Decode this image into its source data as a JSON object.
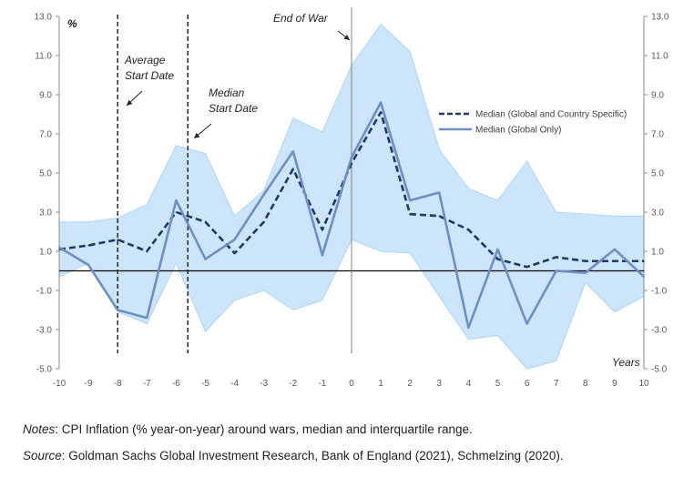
{
  "chart_data": {
    "type": "line",
    "title": "",
    "xlabel": "Years",
    "ylabel": "%",
    "x": [
      -10,
      -9,
      -8,
      -7,
      -6,
      -5,
      -4,
      -3,
      -2,
      -1,
      0,
      1,
      2,
      3,
      4,
      5,
      6,
      7,
      8,
      9,
      10
    ],
    "xlim": [
      -10,
      10
    ],
    "ylim": [
      -5,
      13
    ],
    "yticks": [
      "13.0",
      "11.0",
      "9.0",
      "7.0",
      "5.0",
      "3.0",
      "1.0",
      "-1.0",
      "-3.0",
      "-5.0"
    ],
    "ytick_values": [
      13,
      11,
      9,
      7,
      5,
      3,
      1,
      -1,
      -3,
      -5
    ],
    "xticks": [
      "-10",
      "-9",
      "-8",
      "-7",
      "-6",
      "-5",
      "-4",
      "-3",
      "-2",
      "-1",
      "0",
      "1",
      "2",
      "3",
      "4",
      "5",
      "6",
      "7",
      "8",
      "9",
      "10"
    ],
    "series": [
      {
        "name": "Median (Global and Country Specific)",
        "style": "dashed",
        "color": "#1f3864",
        "values": [
          1.1,
          1.3,
          1.6,
          1.0,
          3.0,
          2.5,
          0.9,
          2.5,
          5.2,
          2.1,
          5.5,
          8.1,
          2.9,
          2.8,
          2.1,
          0.6,
          0.2,
          0.7,
          0.5,
          0.5,
          0.5
        ]
      },
      {
        "name": "Median (Global Only)",
        "style": "solid",
        "color": "#6f8fc2",
        "values": [
          1.2,
          0.3,
          -2.0,
          -2.4,
          3.6,
          0.6,
          1.6,
          3.9,
          6.1,
          0.8,
          5.8,
          8.6,
          3.6,
          4.0,
          -2.9,
          1.1,
          -2.7,
          0.0,
          -0.1,
          1.1,
          -0.3
        ]
      }
    ],
    "interquartile_range": {
      "color": "#cce5fa",
      "upper": [
        2.5,
        2.5,
        2.7,
        3.4,
        6.4,
        6.0,
        2.8,
        4.1,
        7.8,
        7.1,
        10.5,
        12.6,
        11.2,
        6.2,
        4.2,
        3.6,
        5.6,
        3.0,
        2.9,
        2.8,
        2.8
      ],
      "lower": [
        -0.3,
        0.4,
        -2.1,
        -2.7,
        0.4,
        -3.1,
        -1.5,
        -1.0,
        -2.0,
        -1.5,
        1.6,
        1.0,
        0.9,
        -1.3,
        -3.5,
        -3.3,
        -5.0,
        -4.6,
        -0.6,
        -2.1,
        -1.3
      ]
    },
    "vertical_markers": [
      {
        "x": -8,
        "style": "dashed",
        "label": [
          "Average",
          "Start Date"
        ]
      },
      {
        "x": -5.6,
        "style": "dashed",
        "label": [
          "Median",
          "Start Date"
        ]
      },
      {
        "x": 0,
        "style": "solid",
        "label": [
          "End of War"
        ]
      }
    ],
    "legend_position": "right",
    "grid": false
  },
  "notes": {
    "lead": "Notes",
    "text": ": CPI Inflation (% year-on-year) around wars, median and interquartile range."
  },
  "source": {
    "lead": "Source",
    "text": ": Goldman Sachs Global Investment Research, Bank of England (2021), Schmelzing (2020)."
  }
}
